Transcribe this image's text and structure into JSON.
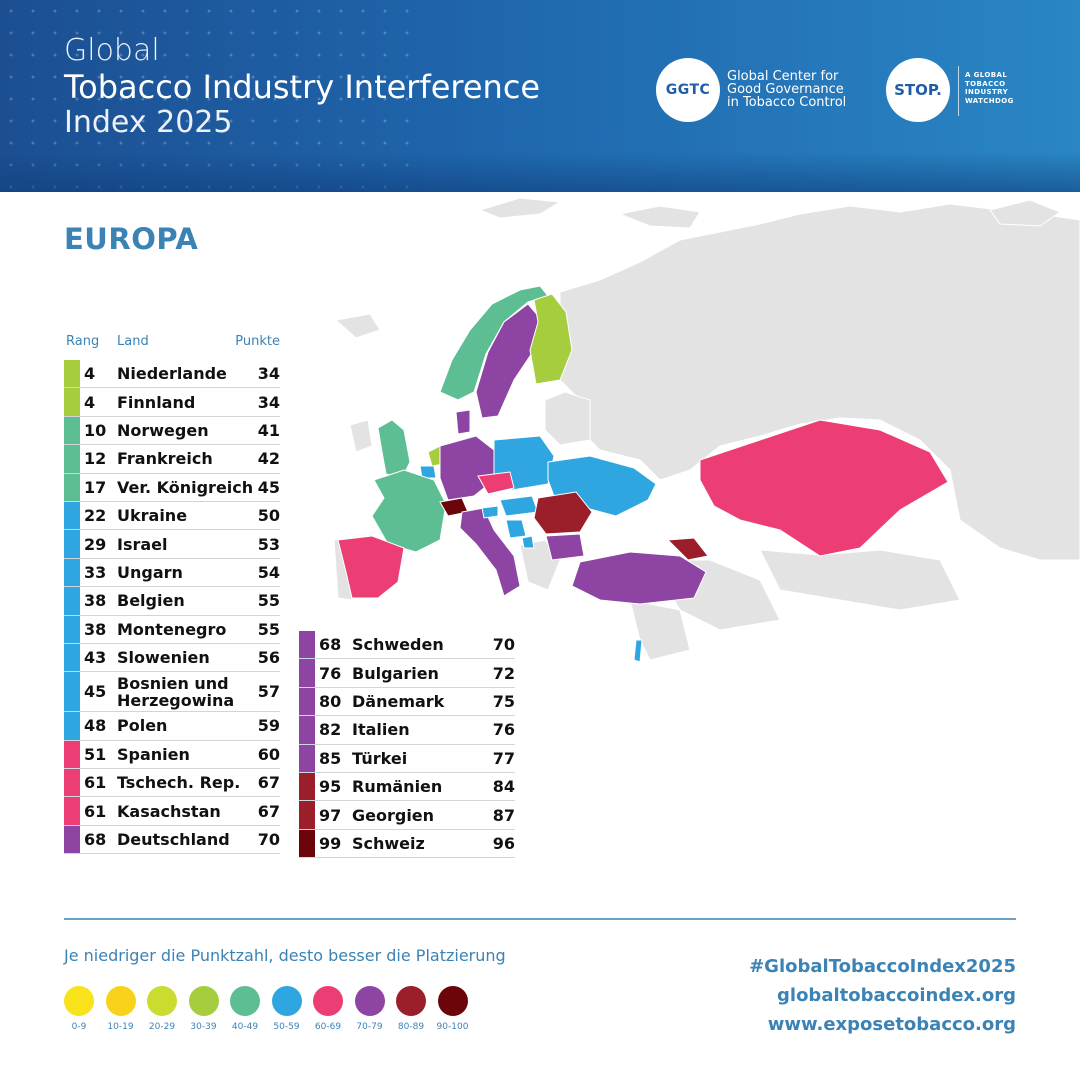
{
  "header": {
    "title_line1": "Global",
    "title_line2": "Tobacco Industry Interference",
    "title_line3": "Index 2025",
    "ggtc_logo": "GGTC",
    "ggtc_line1": "Global Center for",
    "ggtc_line2": "Good Governance",
    "ggtc_line3": "in Tobacco Control",
    "stop_logo": "STOP.",
    "stop_line1": "A GLOBAL",
    "stop_line2": "TOBACCO",
    "stop_line3": "INDUSTRY",
    "stop_line4": "WATCHDOG"
  },
  "region": "EUROPA",
  "table_headers": {
    "rank": "Rang",
    "country": "Land",
    "points": "Punkte"
  },
  "colors": {
    "30-39": "#a6cd3e",
    "40-49": "#5dbe93",
    "50-59": "#2fa6e0",
    "60-69": "#ec3e74",
    "70-79": "#8e44a2",
    "80-89": "#9b1f2a",
    "90-100": "#6b0509",
    "map_base": "#e3e3e3",
    "accent": "#3b82b5"
  },
  "table_left": [
    {
      "rank": "4",
      "country": "Niederlande",
      "points": "34",
      "color": "#a6cd3e"
    },
    {
      "rank": "4",
      "country": "Finnland",
      "points": "34",
      "color": "#a6cd3e"
    },
    {
      "rank": "10",
      "country": "Norwegen",
      "points": "41",
      "color": "#5dbe93"
    },
    {
      "rank": "12",
      "country": "Frankreich",
      "points": "42",
      "color": "#5dbe93"
    },
    {
      "rank": "17",
      "country": "Ver. Königreich",
      "points": "45",
      "color": "#5dbe93"
    },
    {
      "rank": "22",
      "country": "Ukraine",
      "points": "50",
      "color": "#2fa6e0"
    },
    {
      "rank": "29",
      "country": "Israel",
      "points": "53",
      "color": "#2fa6e0"
    },
    {
      "rank": "33",
      "country": "Ungarn",
      "points": "54",
      "color": "#2fa6e0"
    },
    {
      "rank": "38",
      "country": "Belgien",
      "points": "55",
      "color": "#2fa6e0"
    },
    {
      "rank": "38",
      "country": "Montenegro",
      "points": "55",
      "color": "#2fa6e0"
    },
    {
      "rank": "43",
      "country": "Slowenien",
      "points": "56",
      "color": "#2fa6e0"
    },
    {
      "rank": "45",
      "country": "Bosnien und Herzegowina",
      "points": "57",
      "color": "#2fa6e0"
    },
    {
      "rank": "48",
      "country": "Polen",
      "points": "59",
      "color": "#2fa6e0"
    },
    {
      "rank": "51",
      "country": "Spanien",
      "points": "60",
      "color": "#ec3e74"
    },
    {
      "rank": "61",
      "country": "Tschech. Rep.",
      "points": "67",
      "color": "#ec3e74"
    },
    {
      "rank": "61",
      "country": "Kasachstan",
      "points": "67",
      "color": "#ec3e74"
    },
    {
      "rank": "68",
      "country": "Deutschland",
      "points": "70",
      "color": "#8e44a2"
    }
  ],
  "table_right": [
    {
      "rank": "68",
      "country": "Schweden",
      "points": "70",
      "color": "#8e44a2"
    },
    {
      "rank": "76",
      "country": "Bulgarien",
      "points": "72",
      "color": "#8e44a2"
    },
    {
      "rank": "80",
      "country": "Dänemark",
      "points": "75",
      "color": "#8e44a2"
    },
    {
      "rank": "82",
      "country": "Italien",
      "points": "76",
      "color": "#8e44a2"
    },
    {
      "rank": "85",
      "country": "Türkei",
      "points": "77",
      "color": "#8e44a2"
    },
    {
      "rank": "95",
      "country": "Rumänien",
      "points": "84",
      "color": "#9b1f2a"
    },
    {
      "rank": "97",
      "country": "Georgien",
      "points": "87",
      "color": "#9b1f2a"
    },
    {
      "rank": "99",
      "country": "Schweiz",
      "points": "96",
      "color": "#6b0509"
    }
  ],
  "footer": {
    "note": "Je niedriger die Punktzahl, desto besser die Platzierung",
    "legend": [
      {
        "label": "0-9",
        "color": "#f7e21c"
      },
      {
        "label": "10-19",
        "color": "#f8d21a"
      },
      {
        "label": "20-29",
        "color": "#c9dc2f"
      },
      {
        "label": "30-39",
        "color": "#a6cd3e"
      },
      {
        "label": "40-49",
        "color": "#5dbe93"
      },
      {
        "label": "50-59",
        "color": "#2fa6e0"
      },
      {
        "label": "60-69",
        "color": "#ec3e74"
      },
      {
        "label": "70-79",
        "color": "#8e44a2"
      },
      {
        "label": "80-89",
        "color": "#9b1f2a"
      },
      {
        "label": "90-100",
        "color": "#6b0509"
      }
    ],
    "hashtag": "#GlobalTobaccoIndex2025",
    "link1": "globaltobaccoindex.org",
    "link2": "www.exposetobacco.org"
  }
}
